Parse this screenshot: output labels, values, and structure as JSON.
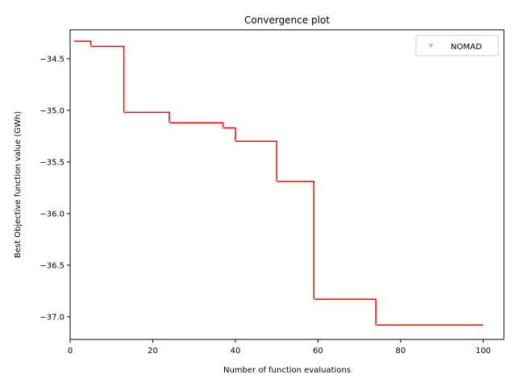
{
  "chart_data": {
    "type": "line",
    "title": "Convergence plot",
    "xlabel": "Number of function evaluations",
    "ylabel": "Best Objective function value (GWh)",
    "xlim": [
      0,
      105
    ],
    "ylim": [
      -37.22,
      -34.22
    ],
    "xticks": [
      0,
      20,
      40,
      60,
      80,
      100
    ],
    "xtick_labels": [
      "0",
      "20",
      "40",
      "60",
      "80",
      "100"
    ],
    "yticks": [
      -34.5,
      -35.0,
      -35.5,
      -36.0,
      -36.5,
      -37.0
    ],
    "ytick_labels": [
      "−34.5",
      "−35.0",
      "−35.5",
      "−36.0",
      "−36.5",
      "−37.0"
    ],
    "grid": false,
    "legend": {
      "location": "top-right",
      "entries": [
        "NOMAD"
      ]
    },
    "series": [
      {
        "name": "NOMAD",
        "line_style": "step-post",
        "line_color": "#ff0000",
        "marker": "triangle-down",
        "marker_color": "#e8a0a0",
        "points": [
          [
            1,
            -34.33
          ],
          [
            5,
            -34.38
          ],
          [
            13,
            -35.02
          ],
          [
            24,
            -35.12
          ],
          [
            37,
            -35.17
          ],
          [
            40,
            -35.3
          ],
          [
            50,
            -35.69
          ],
          [
            59,
            -36.83
          ],
          [
            74,
            -37.08
          ]
        ],
        "x_end": 100
      }
    ]
  }
}
